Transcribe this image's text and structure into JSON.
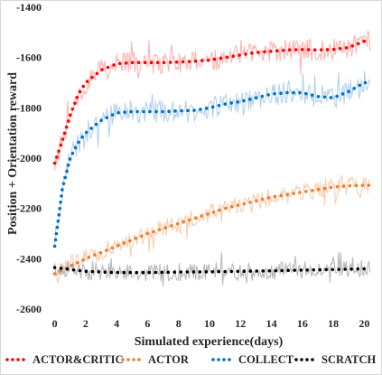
{
  "chart_data": {
    "type": "line",
    "xlabel": "Simulated experience(days)",
    "ylabel": "Position + Orientation reward",
    "xlim": [
      -0.5,
      20.5
    ],
    "ylim": [
      -2600,
      -1400
    ],
    "x_ticks": [
      0,
      2,
      4,
      6,
      8,
      10,
      12,
      14,
      16,
      18,
      20
    ],
    "x_tick_labels": [
      "0",
      "2",
      "4",
      "6",
      "8",
      "10",
      "12",
      "14",
      "16",
      "18",
      "20"
    ],
    "y_ticks": [
      -2600,
      -2400,
      -2200,
      -2000,
      -1800,
      -1600,
      -1400
    ],
    "y_tick_labels": [
      "-2600",
      "-2400",
      "-2200",
      "-2000",
      "-1800",
      "-1600",
      "-1400"
    ],
    "grid": false,
    "legend_position": "bottom",
    "series": [
      {
        "name": "ACTOR&CRITIC",
        "color": "#ff0000",
        "raw_color": "#ffb3b3",
        "noise": 45,
        "x": [
          0,
          0.5,
          1,
          1.5,
          2,
          3,
          4,
          5,
          6,
          7,
          8,
          9,
          10,
          11,
          12,
          13,
          14,
          15,
          16,
          17,
          18,
          19,
          20
        ],
        "values": [
          -2020,
          -1930,
          -1830,
          -1750,
          -1700,
          -1650,
          -1625,
          -1620,
          -1620,
          -1620,
          -1618,
          -1615,
          -1610,
          -1600,
          -1590,
          -1580,
          -1575,
          -1570,
          -1568,
          -1570,
          -1568,
          -1560,
          -1535
        ]
      },
      {
        "name": "ACTOR",
        "color": "#ed7d31",
        "raw_color": "#f8cfb0",
        "noise": 35,
        "x": [
          0,
          1,
          2,
          3,
          4,
          5,
          6,
          7,
          8,
          9,
          10,
          11,
          12,
          13,
          14,
          15,
          16,
          17,
          18,
          19,
          20
        ],
        "values": [
          -2460,
          -2430,
          -2400,
          -2375,
          -2350,
          -2325,
          -2300,
          -2280,
          -2260,
          -2240,
          -2220,
          -2200,
          -2185,
          -2170,
          -2155,
          -2145,
          -2135,
          -2125,
          -2115,
          -2110,
          -2108
        ]
      },
      {
        "name": "COLLECT",
        "color": "#0070c0",
        "raw_color": "#b4d2ee",
        "noise": 45,
        "x": [
          0,
          0.5,
          1,
          1.5,
          2,
          2.5,
          3,
          4,
          5,
          6,
          7,
          8,
          9,
          10,
          11,
          12,
          13,
          14,
          15,
          16,
          17,
          18,
          19,
          20
        ],
        "values": [
          -2350,
          -2120,
          -2000,
          -1940,
          -1900,
          -1875,
          -1850,
          -1820,
          -1815,
          -1815,
          -1815,
          -1812,
          -1810,
          -1800,
          -1785,
          -1775,
          -1760,
          -1745,
          -1740,
          -1740,
          -1755,
          -1760,
          -1735,
          -1700
        ]
      },
      {
        "name": "SCRATCH",
        "color": "#000000",
        "raw_color": "#b8b8b8",
        "noise": 35,
        "x": [
          0,
          2,
          4,
          6,
          8,
          10,
          12,
          14,
          16,
          18,
          20
        ],
        "values": [
          -2435,
          -2450,
          -2455,
          -2455,
          -2453,
          -2452,
          -2450,
          -2448,
          -2445,
          -2443,
          -2440
        ]
      }
    ]
  }
}
